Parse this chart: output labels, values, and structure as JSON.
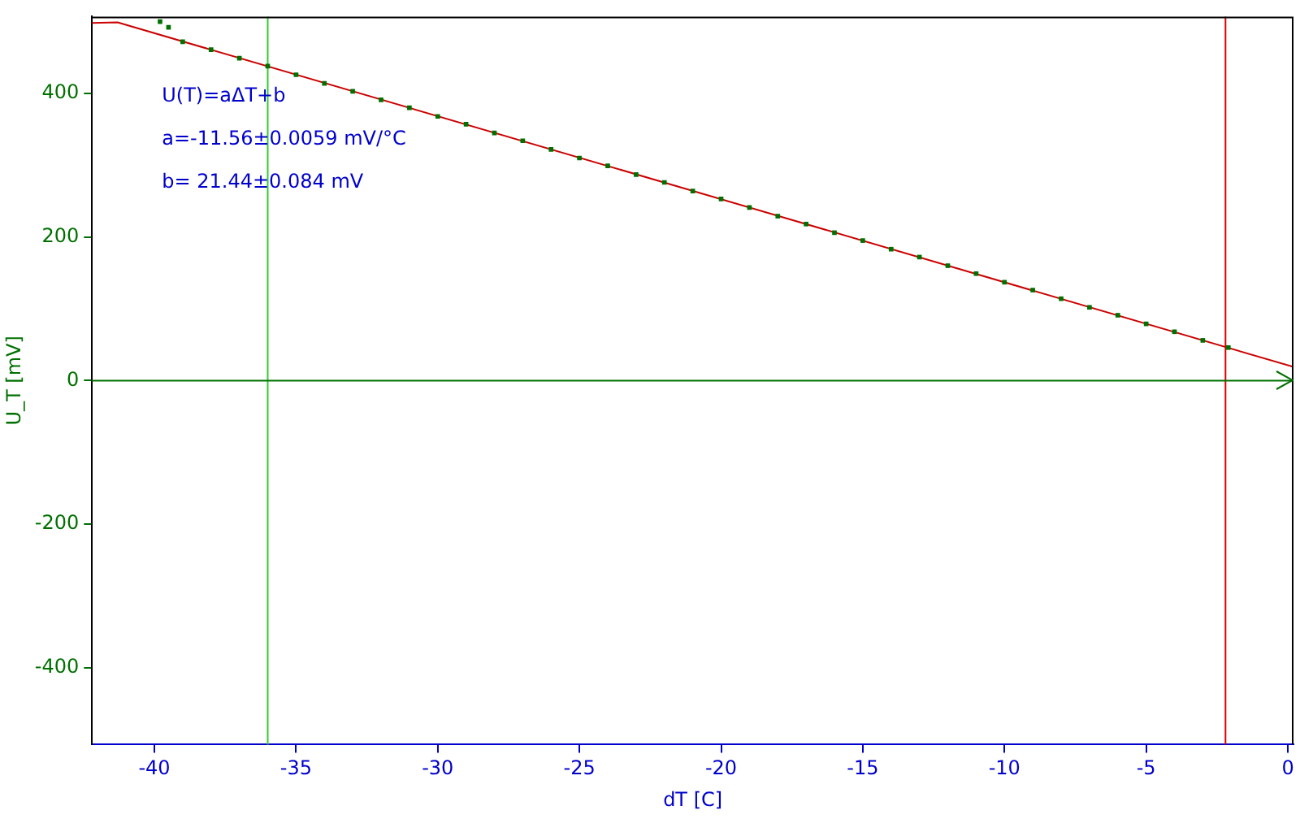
{
  "chart_data": {
    "type": "scatter",
    "xlabel": "dT [C]",
    "ylabel": "U_T [mV]",
    "annotations": [
      "U(T)=aΔT+b",
      "a=-11.56±0.0059 mV/°C",
      "b= 21.44±0.084 mV"
    ],
    "xlim": [
      -42.2,
      0.2
    ],
    "ylim": [
      -507,
      507
    ],
    "xticks": [
      -40,
      -35,
      -30,
      -25,
      -20,
      -15,
      -10,
      -5,
      0
    ],
    "yticks": [
      -400,
      -200,
      0,
      200,
      400
    ],
    "grid": false,
    "legend": false,
    "marker": "square",
    "series": [
      {
        "color": "#007000",
        "x": [
          -39.8,
          -39.5,
          -39,
          -38,
          -37,
          -36,
          -35,
          -34,
          -33,
          -32,
          -31,
          -30,
          -29,
          -28,
          -27,
          -26,
          -25,
          -24,
          -23,
          -22,
          -21,
          -20,
          -19,
          -18,
          -17,
          -16,
          -15,
          -14,
          -13,
          -12,
          -11,
          -10,
          -9,
          -8,
          -7,
          -6,
          -5,
          -4,
          -3,
          -2.1
        ],
        "values": [
          500,
          492,
          472,
          461,
          449,
          438,
          426,
          414,
          403,
          391,
          380,
          368,
          357,
          345,
          334,
          322,
          310,
          299,
          287,
          276,
          264,
          253,
          241,
          229,
          218,
          206,
          195,
          183,
          172,
          160,
          149,
          137,
          126,
          114,
          102,
          91,
          79,
          68,
          56,
          46
        ]
      },
      {
        "type": "line",
        "color": "#cc0000",
        "marker": "none",
        "x": [
          -42.2,
          -41.3,
          0.2
        ],
        "values": [
          498,
          499,
          19
        ]
      }
    ],
    "ref_lines": [
      {
        "axis": "x",
        "value": -36,
        "color": "#33cc33"
      },
      {
        "axis": "x",
        "value": -2.2,
        "color": "#dd0000"
      },
      {
        "axis": "y",
        "value": 0,
        "color": "#007000"
      }
    ]
  }
}
